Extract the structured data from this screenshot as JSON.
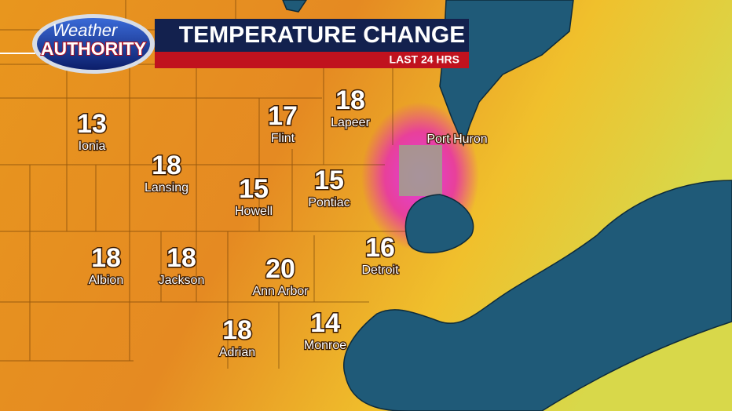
{
  "header": {
    "logo_top": "Weather",
    "logo_bottom": "AUTHORITY",
    "title": "TEMPERATURE CHANGE",
    "subtitle": "LAST 24 HRS"
  },
  "cities": [
    {
      "name": "Ionia",
      "value": 13
    },
    {
      "name": "Lansing",
      "value": 18
    },
    {
      "name": "Flint",
      "value": 17
    },
    {
      "name": "Lapeer",
      "value": 18
    },
    {
      "name": "Howell",
      "value": 15
    },
    {
      "name": "Pontiac",
      "value": 15
    },
    {
      "name": "Albion",
      "value": 18
    },
    {
      "name": "Jackson",
      "value": 18
    },
    {
      "name": "Ann Arbor",
      "value": 20
    },
    {
      "name": "Detroit",
      "value": 16
    },
    {
      "name": "Adrian",
      "value": 18
    },
    {
      "name": "Monroe",
      "value": 14
    }
  ],
  "labels": [
    {
      "name": "Port Huron"
    }
  ]
}
